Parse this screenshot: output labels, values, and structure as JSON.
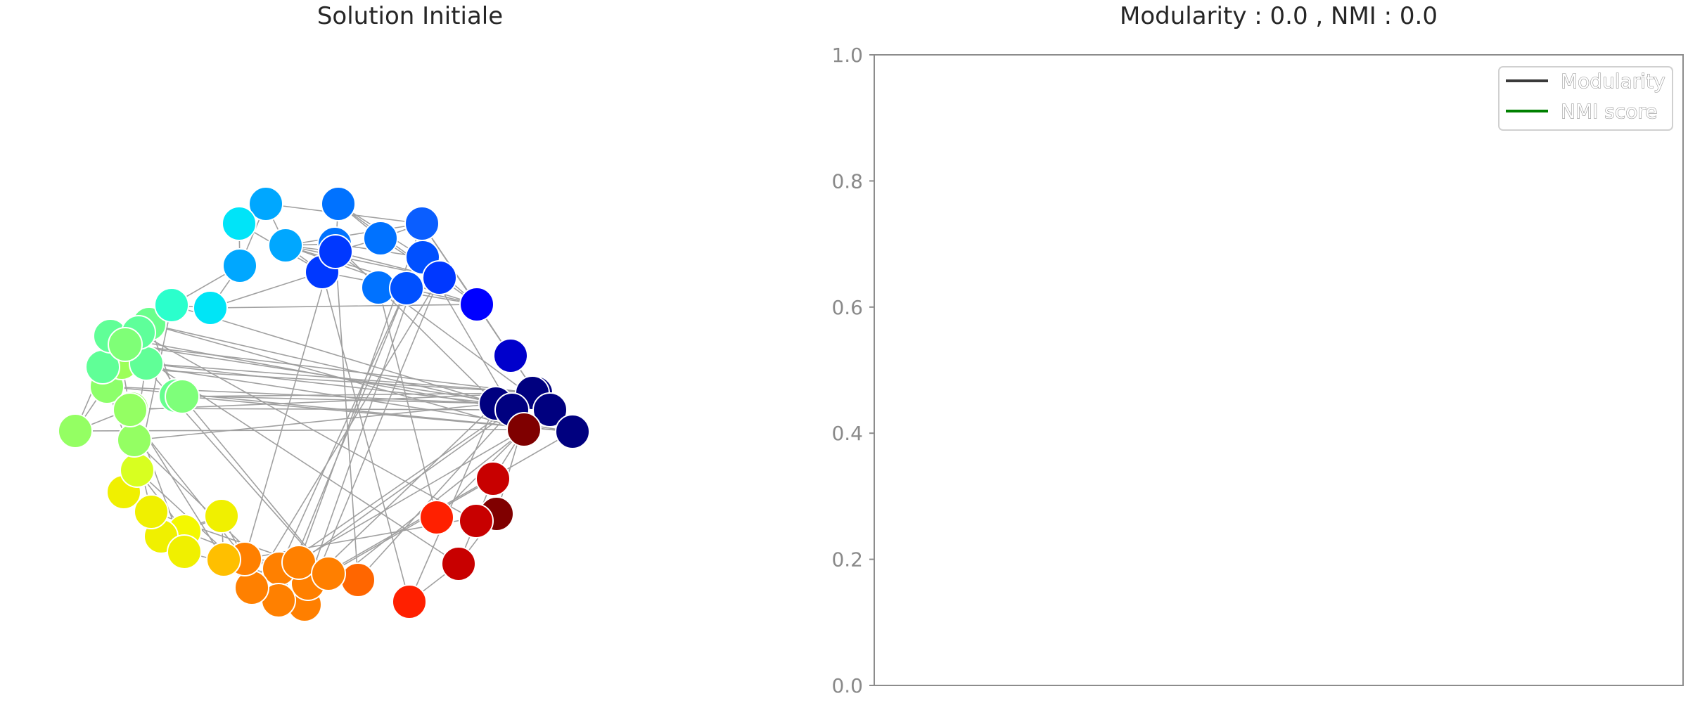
{
  "chart_data": [
    {
      "type": "network",
      "title": "Solution Initiale",
      "edge_color": "#a0a0a0",
      "node_count": 62,
      "node_colors": [
        "#00a7ff",
        "#0072ff",
        "#00e4f8",
        "#00a7ff",
        "#00a7ff",
        "#0072ff",
        "#0a5eff",
        "#0072ff",
        "#0038ff",
        "#0050ff",
        "#0038ff",
        "#0072ff",
        "#0050ff",
        "#0038ff",
        "#0000ff",
        "#0000cc",
        "#00007f",
        "#000080",
        "#00007f",
        "#000080",
        "#00007f",
        "#00007f",
        "#7f0000",
        "#c80000",
        "#800000",
        "#c80000",
        "#c80000",
        "#ff2000",
        "#ff2000",
        "#ff6600",
        "#ff7f00",
        "#ff7f00",
        "#ff8000",
        "#ff8000",
        "#ff8000",
        "#ff8000",
        "#ff8000",
        "#ffbf00",
        "#f0f000",
        "#f4f800",
        "#f0f000",
        "#f0f000",
        "#f0f000",
        "#f0f000",
        "#d8ff20",
        "#94ff63",
        "#94ff63",
        "#8cff6a",
        "#94ff63",
        "#94ff63",
        "#9dff59",
        "#60ff97",
        "#60ff97",
        "#60ff97",
        "#6aff8c",
        "#5eff9a",
        "#7fff77",
        "#2bffcc",
        "#00e5f6",
        "#66ff8e",
        "#7eff7a",
        "#ff7f00"
      ],
      "edges": [
        [
          0,
          3
        ],
        [
          0,
          4
        ],
        [
          1,
          5
        ],
        [
          1,
          10
        ],
        [
          1,
          13
        ],
        [
          2,
          8
        ],
        [
          2,
          4
        ],
        [
          3,
          6
        ],
        [
          3,
          7
        ],
        [
          3,
          8
        ],
        [
          3,
          12
        ],
        [
          3,
          13
        ],
        [
          3,
          10
        ],
        [
          4,
          58
        ],
        [
          5,
          10
        ],
        [
          5,
          13
        ],
        [
          6,
          12
        ],
        [
          6,
          14
        ],
        [
          6,
          15
        ],
        [
          6,
          9
        ],
        [
          7,
          9
        ],
        [
          8,
          12
        ],
        [
          8,
          10
        ],
        [
          9,
          12
        ],
        [
          9,
          14
        ],
        [
          10,
          13
        ],
        [
          11,
          12
        ],
        [
          11,
          13
        ],
        [
          12,
          14
        ],
        [
          13,
          14
        ],
        [
          14,
          15
        ],
        [
          15,
          16
        ],
        [
          16,
          19
        ],
        [
          17,
          18
        ],
        [
          17,
          19
        ],
        [
          18,
          20
        ],
        [
          19,
          21
        ],
        [
          17,
          20
        ],
        [
          18,
          22
        ],
        [
          18,
          24
        ],
        [
          22,
          23
        ],
        [
          23,
          25
        ],
        [
          24,
          26
        ],
        [
          25,
          26
        ],
        [
          22,
          27
        ],
        [
          26,
          28
        ],
        [
          17,
          28
        ],
        [
          19,
          29
        ],
        [
          20,
          30
        ],
        [
          17,
          31
        ],
        [
          18,
          32
        ],
        [
          21,
          33
        ],
        [
          16,
          34
        ],
        [
          22,
          35
        ],
        [
          24,
          36
        ],
        [
          29,
          32
        ],
        [
          30,
          31
        ],
        [
          31,
          33
        ],
        [
          33,
          34
        ],
        [
          32,
          35
        ],
        [
          34,
          36
        ],
        [
          35,
          37
        ],
        [
          36,
          37
        ],
        [
          37,
          38
        ],
        [
          38,
          39
        ],
        [
          39,
          41
        ],
        [
          40,
          41
        ],
        [
          41,
          43
        ],
        [
          42,
          43
        ],
        [
          38,
          40
        ],
        [
          40,
          42
        ],
        [
          39,
          44
        ],
        [
          42,
          44
        ],
        [
          41,
          45
        ],
        [
          43,
          46
        ],
        [
          44,
          47
        ],
        [
          45,
          47
        ],
        [
          46,
          48
        ],
        [
          47,
          49
        ],
        [
          48,
          50
        ],
        [
          49,
          50
        ],
        [
          45,
          51
        ],
        [
          48,
          52
        ],
        [
          50,
          53
        ],
        [
          51,
          52
        ],
        [
          52,
          53
        ],
        [
          53,
          54
        ],
        [
          51,
          55
        ],
        [
          54,
          55
        ],
        [
          55,
          56
        ],
        [
          56,
          57
        ],
        [
          57,
          58
        ],
        [
          54,
          59
        ],
        [
          55,
          60
        ],
        [
          56,
          61
        ],
        [
          57,
          44
        ],
        [
          58,
          8
        ],
        [
          59,
          60
        ],
        [
          60,
          61
        ],
        [
          45,
          17
        ],
        [
          47,
          17
        ],
        [
          49,
          18
        ],
        [
          51,
          16
        ],
        [
          53,
          19
        ],
        [
          56,
          20
        ],
        [
          59,
          17
        ],
        [
          52,
          16
        ],
        [
          47,
          21
        ],
        [
          60,
          18
        ],
        [
          39,
          32
        ],
        [
          38,
          36
        ],
        [
          43,
          31
        ],
        [
          44,
          33
        ],
        [
          41,
          34
        ],
        [
          57,
          17
        ],
        [
          58,
          14
        ],
        [
          46,
          19
        ],
        [
          50,
          21
        ],
        [
          54,
          17
        ],
        [
          48,
          22
        ],
        [
          6,
          34
        ],
        [
          7,
          36
        ],
        [
          12,
          32
        ],
        [
          13,
          30
        ],
        [
          9,
          31
        ],
        [
          11,
          27
        ],
        [
          10,
          29
        ],
        [
          8,
          28
        ],
        [
          13,
          35
        ],
        [
          12,
          33
        ],
        [
          6,
          16
        ],
        [
          7,
          17
        ],
        [
          9,
          19
        ],
        [
          10,
          20
        ],
        [
          11,
          14
        ],
        [
          3,
          14
        ],
        [
          1,
          9
        ],
        [
          5,
          6
        ],
        [
          0,
          6
        ],
        [
          4,
          57
        ],
        [
          61,
          23
        ],
        [
          47,
          36
        ],
        [
          45,
          30
        ],
        [
          51,
          20
        ],
        [
          53,
          26
        ],
        [
          49,
          37
        ],
        [
          55,
          25
        ],
        [
          59,
          21
        ],
        [
          56,
          18
        ],
        [
          54,
          22
        ]
      ]
    },
    {
      "type": "line",
      "title": "Modularity : 0.0 , NMI :  0.0",
      "ylim": [
        0,
        1
      ],
      "yticks": [
        "0.0",
        "0.2",
        "0.4",
        "0.6",
        "0.8",
        "1.0"
      ],
      "series": [
        {
          "name": "Modularity",
          "color": "#3a3a3a",
          "values": []
        },
        {
          "name": "NMI score",
          "color": "#008000",
          "values": []
        }
      ],
      "legend_position": "top-right"
    }
  ]
}
